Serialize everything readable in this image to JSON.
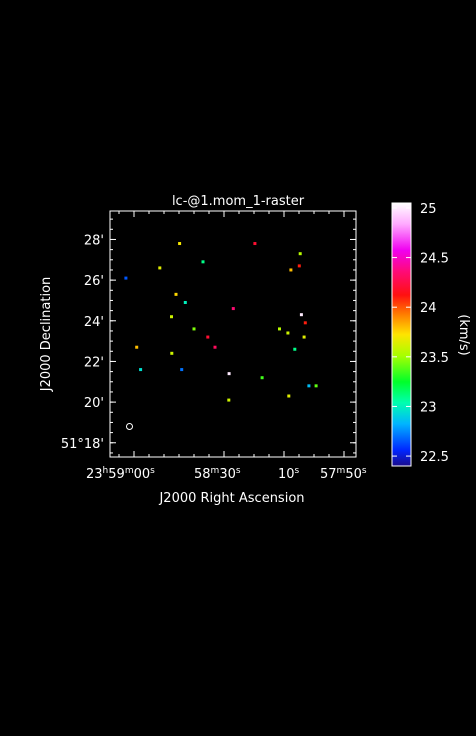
{
  "chart_data": {
    "type": "scatter",
    "title": "lc-@1.mom_1-raster",
    "xlabel": "J2000 Right Ascension",
    "ylabel": "J2000 Declination",
    "x_ticks": [
      {
        "h": "23",
        "m": "59",
        "s": "00",
        "value_s": 0
      },
      {
        "value_s": 30,
        "label": "58",
        "sup": "m",
        "sec": "30",
        "sec_sup": "s"
      },
      {
        "value_s": 50,
        "label": "10",
        "sup": "s"
      },
      {
        "value_s": 70,
        "label": "57",
        "sup": "m",
        "sec": "50",
        "sec_sup": "s"
      }
    ],
    "y_ticks": [
      {
        "value": 18,
        "label": "51°18'"
      },
      {
        "value": 20,
        "label": "20'"
      },
      {
        "value": 22,
        "label": "22'"
      },
      {
        "value": 24,
        "label": "24'"
      },
      {
        "value": 26,
        "label": "26'"
      },
      {
        "value": 28,
        "label": "28'"
      }
    ],
    "xlim": [
      -8,
      74
    ],
    "ylim": [
      17.3,
      29.4
    ],
    "colorbar": {
      "label": "(km/s)",
      "range": [
        22.4,
        25.05
      ],
      "ticks": [
        "22.5",
        "23",
        "23.5",
        "24",
        "24.5",
        "25"
      ],
      "tick_values": [
        22.5,
        23,
        23.5,
        24,
        24.5,
        25
      ]
    },
    "points": [
      {
        "ra_s": 15.2,
        "dec": 27.8,
        "v": 23.7
      },
      {
        "ra_s": 40.3,
        "dec": 27.8,
        "v": 24.2
      },
      {
        "ra_s": 55.4,
        "dec": 27.3,
        "v": 23.55
      },
      {
        "ra_s": 23.0,
        "dec": 26.9,
        "v": 23.1
      },
      {
        "ra_s": 8.6,
        "dec": 26.6,
        "v": 23.65
      },
      {
        "ra_s": 52.3,
        "dec": 26.5,
        "v": 23.8
      },
      {
        "ra_s": 55.1,
        "dec": 26.7,
        "v": 24.1
      },
      {
        "ra_s": -2.7,
        "dec": 26.1,
        "v": 22.65
      },
      {
        "ra_s": 14.0,
        "dec": 25.3,
        "v": 23.75
      },
      {
        "ra_s": 17.1,
        "dec": 24.9,
        "v": 23.0
      },
      {
        "ra_s": 33.1,
        "dec": 24.6,
        "v": 24.35
      },
      {
        "ra_s": 12.5,
        "dec": 24.2,
        "v": 23.6
      },
      {
        "ra_s": 55.8,
        "dec": 24.3,
        "v": 25.0
      },
      {
        "ra_s": 20.0,
        "dec": 23.6,
        "v": 23.45
      },
      {
        "ra_s": 48.5,
        "dec": 23.6,
        "v": 23.55
      },
      {
        "ra_s": 57.1,
        "dec": 23.9,
        "v": 24.1
      },
      {
        "ra_s": 51.3,
        "dec": 23.4,
        "v": 23.6
      },
      {
        "ra_s": 24.6,
        "dec": 23.2,
        "v": 24.2
      },
      {
        "ra_s": 56.7,
        "dec": 23.2,
        "v": 23.65
      },
      {
        "ra_s": 27.0,
        "dec": 22.7,
        "v": 24.3
      },
      {
        "ra_s": 0.9,
        "dec": 22.7,
        "v": 23.8
      },
      {
        "ra_s": 12.6,
        "dec": 22.4,
        "v": 23.6
      },
      {
        "ra_s": 53.6,
        "dec": 22.6,
        "v": 23.1
      },
      {
        "ra_s": 2.2,
        "dec": 21.6,
        "v": 22.95
      },
      {
        "ra_s": 15.9,
        "dec": 21.6,
        "v": 22.7
      },
      {
        "ra_s": 31.7,
        "dec": 21.4,
        "v": 25.0
      },
      {
        "ra_s": 42.7,
        "dec": 21.2,
        "v": 23.35
      },
      {
        "ra_s": 58.3,
        "dec": 20.8,
        "v": 22.85
      },
      {
        "ra_s": 60.7,
        "dec": 20.8,
        "v": 23.4
      },
      {
        "ra_s": 51.6,
        "dec": 20.3,
        "v": 23.65
      },
      {
        "ra_s": 31.6,
        "dec": 20.1,
        "v": 23.6
      }
    ],
    "beam": {
      "ra_s": -1.5,
      "dec": 18.8
    }
  }
}
